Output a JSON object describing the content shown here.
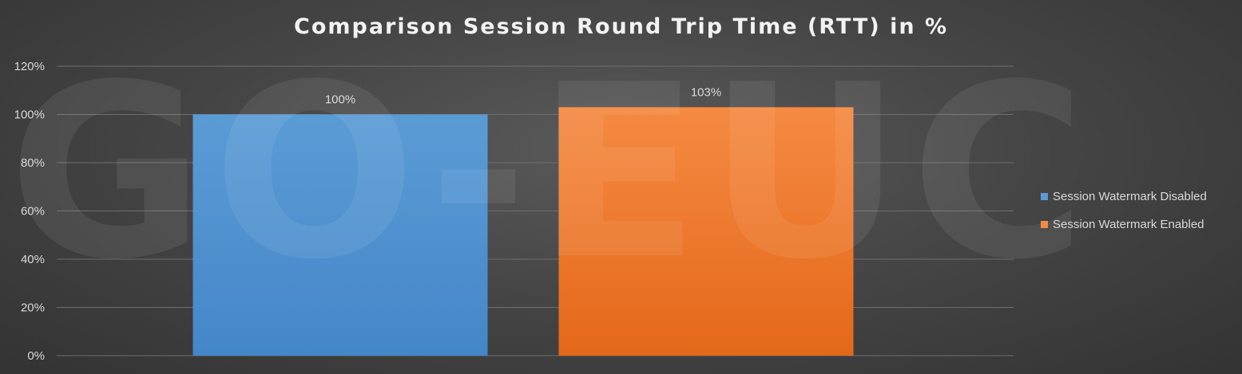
{
  "watermark_text": "GO-EUC",
  "chart_data": {
    "type": "bar",
    "title": "Comparison Session Round Trip Time (RTT) in %",
    "categories": [
      ""
    ],
    "series": [
      {
        "name": "Session Watermark Disabled",
        "values": [
          100
        ],
        "label": "100%",
        "color": "#5b9bd5",
        "color_dark": "#4487c9"
      },
      {
        "name": "Session Watermark Enabled",
        "values": [
          103
        ],
        "label": "103%",
        "color": "#f58a42",
        "color_dark": "#e4681a"
      }
    ],
    "ylim": [
      0,
      120
    ],
    "yticks": [
      0,
      20,
      40,
      60,
      80,
      100,
      120
    ],
    "ytick_labels": [
      "0%",
      "20%",
      "40%",
      "60%",
      "80%",
      "100%",
      "120%"
    ],
    "grid": true,
    "legend_position": "right",
    "xlabel": "",
    "ylabel": ""
  }
}
